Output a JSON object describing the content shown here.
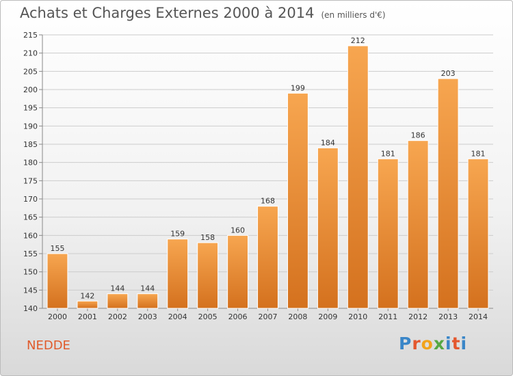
{
  "header": {
    "title": "Achats et Charges Externes 2000 à 2014",
    "unit": "(en milliers d'€)"
  },
  "footer": {
    "commune": "NEDDE",
    "logo_text": "Proxiti"
  },
  "colors": {
    "bar_light": "#f7a650",
    "bar_dark": "#d4711e",
    "grid": "#cccccc",
    "commune_text": "#e05a2b"
  },
  "chart_data": {
    "type": "bar",
    "title": "Achats et Charges Externes 2000 à 2014",
    "subtitle": "(en milliers d'€)",
    "xlabel": "",
    "ylabel": "",
    "categories": [
      "2000",
      "2001",
      "2002",
      "2003",
      "2004",
      "2005",
      "2006",
      "2007",
      "2008",
      "2009",
      "2010",
      "2011",
      "2012",
      "2013",
      "2014"
    ],
    "values": [
      155,
      142,
      144,
      144,
      159,
      158,
      160,
      168,
      199,
      184,
      212,
      181,
      186,
      203,
      181
    ],
    "ylim": [
      140,
      215
    ],
    "yticks": [
      140,
      145,
      150,
      155,
      160,
      165,
      170,
      175,
      180,
      185,
      190,
      195,
      200,
      205,
      210,
      215
    ],
    "grid": true,
    "legend": "none",
    "data_labels": true
  }
}
